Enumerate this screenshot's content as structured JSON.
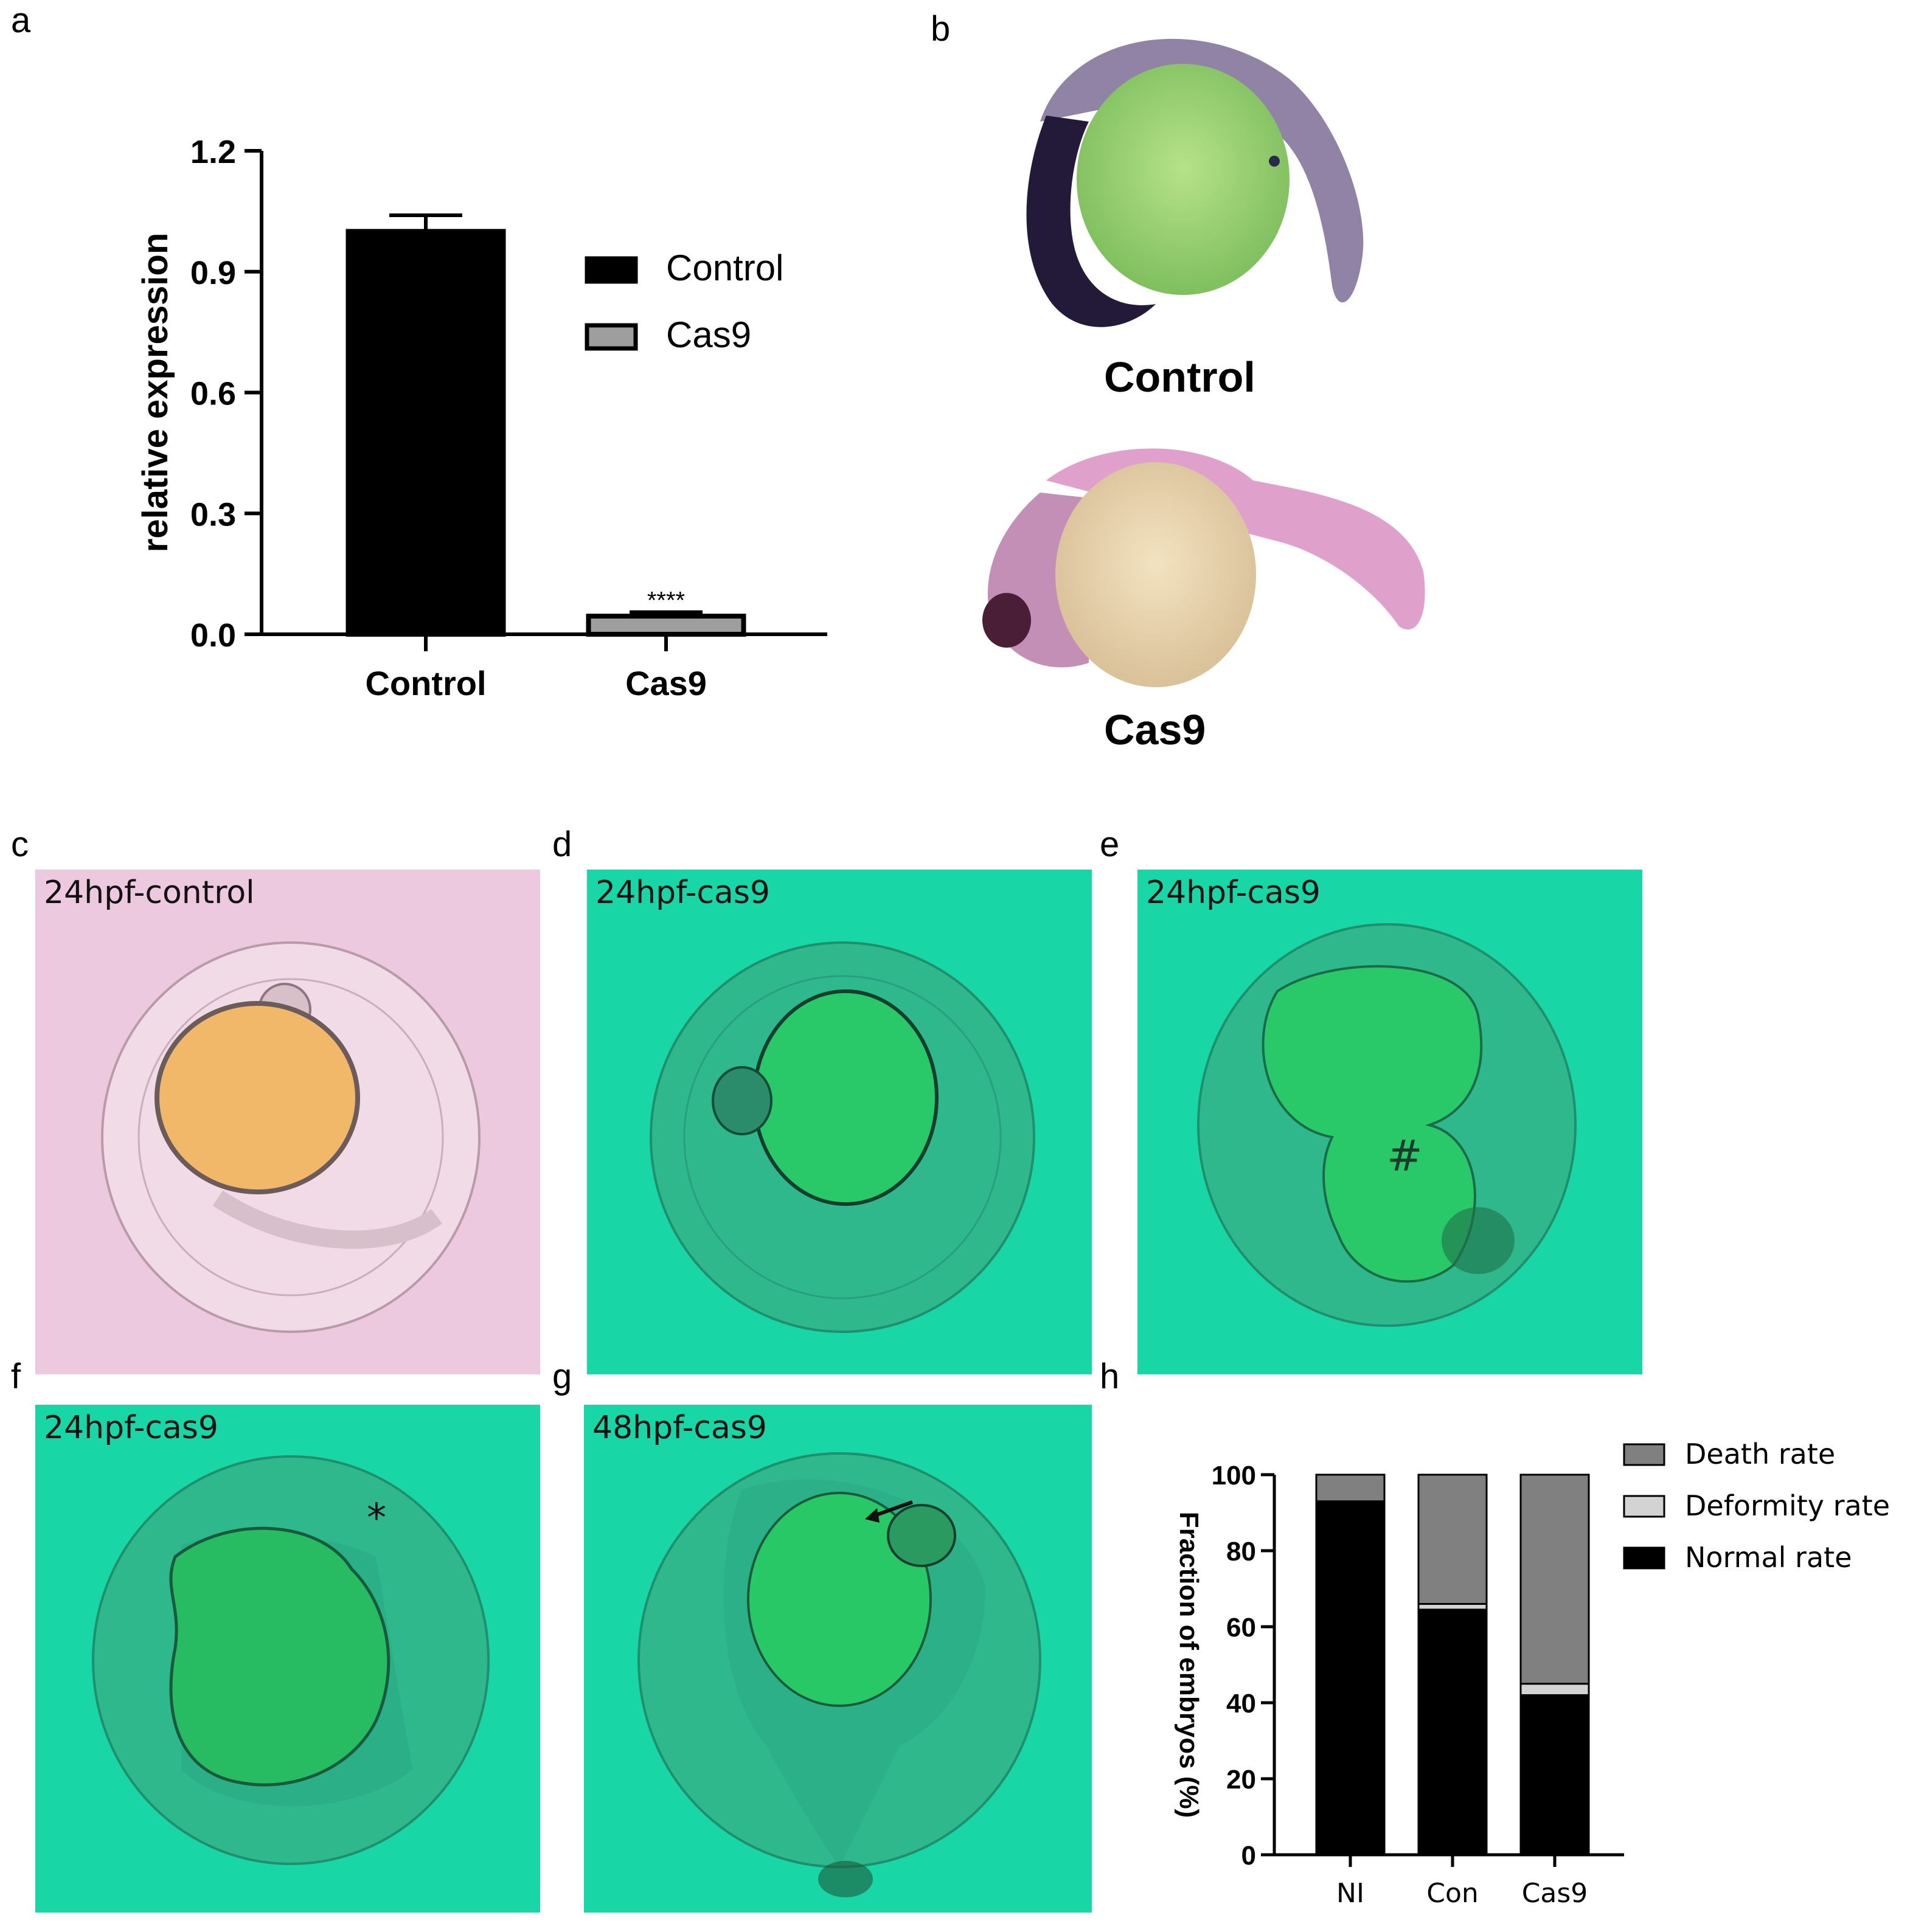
{
  "panels": {
    "a": "a",
    "b": "b",
    "c": "c",
    "d": "d",
    "e": "e",
    "f": "f",
    "g": "g",
    "h": "h"
  },
  "panel_b": {
    "control_caption": "Control",
    "cas9_caption": "Cas9"
  },
  "photos": {
    "c_label": "24hpf-control",
    "d_label": "24hpf-cas9",
    "e_label": "24hpf-cas9",
    "f_label": "24hpf-cas9",
    "g_label": "48hpf-cas9",
    "e_marker": "#",
    "f_marker": "*"
  },
  "colors": {
    "control_bar": "#000000",
    "cas9_bar": "#9e9e9e",
    "death": "#808080",
    "deformity": "#d3d3d3",
    "normal": "#000000",
    "green_bg": "#19d6a6",
    "pink_bg": "#e9c6dc"
  },
  "chart_data": [
    {
      "panel": "a",
      "type": "bar",
      "title": "",
      "xlabel": "",
      "ylabel": "relative expression",
      "categories": [
        "Control",
        "Cas9"
      ],
      "values": [
        1.0,
        0.045
      ],
      "errors": [
        0.04,
        0.01
      ],
      "ylim": [
        0,
        1.2
      ],
      "yticks": [
        "0.0",
        "0.3",
        "0.6",
        "0.9",
        "1.2"
      ],
      "ytick_values": [
        0,
        0.3,
        0.6,
        0.9,
        1.2
      ],
      "significance": "****",
      "legend": [
        "Control",
        "Cas9"
      ],
      "legend_position": "right"
    },
    {
      "panel": "h",
      "type": "bar",
      "stacked": true,
      "title": "",
      "xlabel": "",
      "ylabel": "Fraction of embryos (%)",
      "categories": [
        "NI",
        "Con",
        "Cas9"
      ],
      "series": [
        {
          "name": "Normal rate",
          "values": [
            93,
            64.5,
            42
          ]
        },
        {
          "name": "Deformity rate",
          "values": [
            0,
            1.5,
            3
          ]
        },
        {
          "name": "Death rate",
          "values": [
            7,
            34,
            55
          ]
        }
      ],
      "legend_order": [
        "Death rate",
        "Deformity rate",
        "Normal rate"
      ],
      "ylim": [
        0,
        100
      ],
      "yticks": [
        "0",
        "20",
        "40",
        "60",
        "80",
        "100"
      ],
      "ytick_values": [
        0,
        20,
        40,
        60,
        80,
        100
      ],
      "legend_position": "top-right"
    }
  ]
}
